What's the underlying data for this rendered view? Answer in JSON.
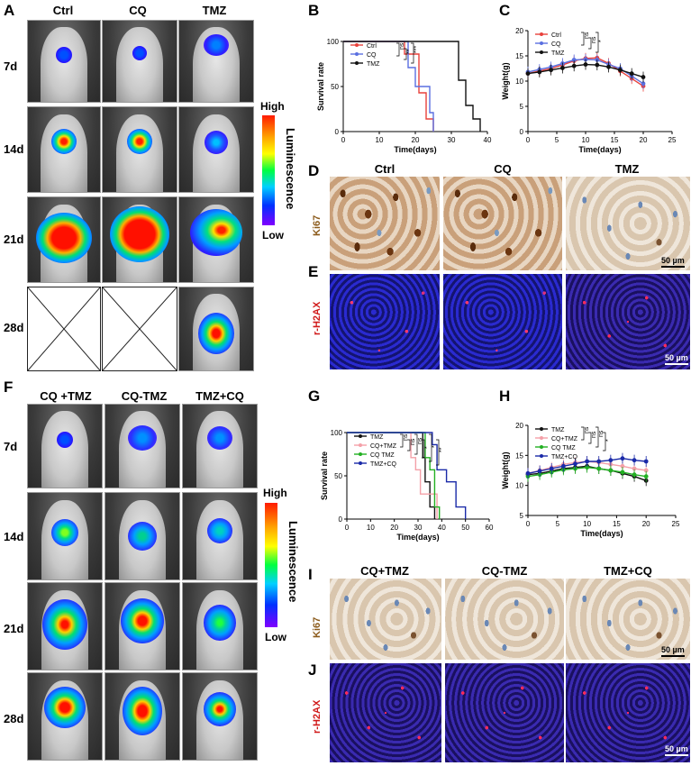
{
  "panels": {
    "A": {
      "label": "A",
      "columns": [
        "Ctrl",
        "CQ",
        "TMZ"
      ],
      "rows": [
        "7d",
        "14d",
        "21d",
        "28d"
      ]
    },
    "F": {
      "label": "F",
      "columns": [
        "CQ +TMZ",
        "CQ-TMZ",
        "TMZ+CQ"
      ],
      "rows": [
        "7d",
        "14d",
        "21d",
        "28d"
      ]
    },
    "B": {
      "label": "B"
    },
    "C": {
      "label": "C"
    },
    "D": {
      "label": "D",
      "columns": [
        "Ctrl",
        "CQ",
        "TMZ"
      ],
      "stain": "Ki67",
      "scale": "50 µm"
    },
    "E": {
      "label": "E",
      "stain": "r-H2AX",
      "scale": "50 µm"
    },
    "G": {
      "label": "G"
    },
    "H": {
      "label": "H"
    },
    "I": {
      "label": "I",
      "columns": [
        "CQ+TMZ",
        "CQ-TMZ",
        "TMZ+CQ"
      ],
      "stain": "Ki67",
      "scale": "50 µm"
    },
    "J": {
      "label": "J",
      "stain": "r-H2AX",
      "scale": "50 µm"
    }
  },
  "colorbar": {
    "high": "High",
    "low": "Low",
    "title": "Luminescence"
  },
  "colors": {
    "red": "#e8413c",
    "blue": "#5a6fe0",
    "black": "#111111",
    "pink": "#f4a0a8",
    "green": "#22b022",
    "navy": "#1a2aa8"
  },
  "chart_data": [
    {
      "id": "B",
      "type": "line",
      "style": "step",
      "xlabel": "Time(days)",
      "ylabel": "Survival rate",
      "xlim": [
        0,
        40
      ],
      "ylim": [
        0,
        100
      ],
      "xticks": [
        0,
        10,
        20,
        30,
        40
      ],
      "yticks": [
        0,
        50,
        100
      ],
      "legend": [
        "Ctrl",
        "CQ",
        "TMZ"
      ],
      "significance": [
        "ns",
        "**",
        "***"
      ],
      "series": [
        {
          "name": "Ctrl",
          "color": "#e8413c",
          "x": [
            0,
            15,
            17,
            21,
            23,
            25
          ],
          "y": [
            100,
            100,
            86,
            43,
            14,
            0
          ]
        },
        {
          "name": "CQ",
          "color": "#5a6fe0",
          "x": [
            0,
            14,
            18,
            20,
            24,
            25
          ],
          "y": [
            100,
            100,
            71,
            50,
            21,
            0
          ]
        },
        {
          "name": "TMZ",
          "color": "#111111",
          "x": [
            0,
            30,
            32,
            34,
            36,
            38
          ],
          "y": [
            100,
            100,
            57,
            29,
            14,
            0
          ]
        }
      ]
    },
    {
      "id": "C",
      "type": "line",
      "xlabel": "Time(days)",
      "ylabel": "Weight(g)",
      "xlim": [
        0,
        25
      ],
      "ylim": [
        0,
        20
      ],
      "xticks": [
        0,
        5,
        10,
        15,
        20,
        25
      ],
      "yticks": [
        0,
        5,
        10,
        15,
        20
      ],
      "legend": [
        "Ctrl",
        "CQ",
        "TMZ"
      ],
      "significance": [
        "ns",
        "ns",
        "*"
      ],
      "series": [
        {
          "name": "Ctrl",
          "color": "#e8413c",
          "x": [
            0,
            2,
            4,
            6,
            8,
            10,
            12,
            14,
            16,
            18,
            20
          ],
          "y": [
            11.5,
            12.0,
            12.5,
            13.2,
            14.0,
            14.5,
            14.6,
            13.5,
            12.0,
            10.5,
            9.0
          ]
        },
        {
          "name": "CQ",
          "color": "#5a6fe0",
          "x": [
            0,
            2,
            4,
            6,
            8,
            10,
            12,
            14,
            16,
            18,
            20
          ],
          "y": [
            11.8,
            12.3,
            12.8,
            13.5,
            14.2,
            14.3,
            14.2,
            13.3,
            12.5,
            11.0,
            9.5
          ]
        },
        {
          "name": "TMZ",
          "color": "#111111",
          "x": [
            0,
            2,
            4,
            6,
            8,
            10,
            12,
            14,
            16,
            18,
            20
          ],
          "y": [
            11.5,
            11.8,
            12.2,
            12.6,
            13.0,
            13.3,
            13.2,
            12.8,
            12.2,
            11.5,
            10.8
          ]
        }
      ]
    },
    {
      "id": "G",
      "type": "line",
      "style": "step",
      "xlabel": "Time(days)",
      "ylabel": "Survival rate",
      "xlim": [
        0,
        60
      ],
      "ylim": [
        0,
        100
      ],
      "xticks": [
        0,
        10,
        20,
        30,
        40,
        50,
        60
      ],
      "yticks": [
        0,
        50,
        100
      ],
      "legend": [
        "TMZ",
        "CQ+TMZ",
        "CQ TMZ",
        "TMZ+CQ"
      ],
      "significance": [
        "ns",
        "ns",
        "ns",
        "*",
        "*",
        "**"
      ],
      "series": [
        {
          "name": "TMZ",
          "color": "#111111",
          "x": [
            0,
            30,
            32,
            33,
            35,
            37
          ],
          "y": [
            100,
            100,
            71,
            43,
            14,
            0
          ]
        },
        {
          "name": "CQ+TMZ",
          "color": "#f4a0a8",
          "x": [
            0,
            25,
            27,
            29,
            31,
            38
          ],
          "y": [
            100,
            100,
            71,
            57,
            29,
            0
          ]
        },
        {
          "name": "CQ TMZ",
          "color": "#22b022",
          "x": [
            0,
            31,
            33,
            35,
            37,
            39
          ],
          "y": [
            100,
            100,
            71,
            57,
            14,
            0
          ]
        },
        {
          "name": "TMZ+CQ",
          "color": "#1a2aa8",
          "x": [
            0,
            34,
            36,
            38,
            42,
            46,
            50
          ],
          "y": [
            100,
            100,
            86,
            57,
            43,
            14,
            0
          ]
        }
      ]
    },
    {
      "id": "H",
      "type": "line",
      "xlabel": "Time(days)",
      "ylabel": "Weight(g)",
      "xlim": [
        0,
        25
      ],
      "ylim": [
        5,
        20
      ],
      "xticks": [
        0,
        5,
        10,
        15,
        20,
        25
      ],
      "yticks": [
        5,
        10,
        15,
        20
      ],
      "legend": [
        "TMZ",
        "CQ+TMZ",
        "CQ TMZ",
        "TMZ+CQ"
      ],
      "significance": [
        "ns",
        "ns",
        "ns",
        "*"
      ],
      "series": [
        {
          "name": "TMZ",
          "color": "#111111",
          "x": [
            0,
            2,
            4,
            6,
            8,
            10,
            12,
            14,
            16,
            18,
            20
          ],
          "y": [
            11.8,
            12.0,
            12.4,
            12.8,
            13.0,
            13.2,
            12.8,
            12.5,
            12.0,
            11.5,
            10.8
          ]
        },
        {
          "name": "CQ+TMZ",
          "color": "#f4a0a8",
          "x": [
            0,
            2,
            4,
            6,
            8,
            10,
            12,
            14,
            16,
            18,
            20
          ],
          "y": [
            12.0,
            12.5,
            13.0,
            13.5,
            13.8,
            14.0,
            13.8,
            13.5,
            13.2,
            12.8,
            12.5
          ]
        },
        {
          "name": "CQ TMZ",
          "color": "#22b022",
          "x": [
            0,
            2,
            4,
            6,
            8,
            10,
            12,
            14,
            16,
            18,
            20
          ],
          "y": [
            11.5,
            11.8,
            12.2,
            12.6,
            12.8,
            13.0,
            12.8,
            12.5,
            12.2,
            11.8,
            11.5
          ]
        },
        {
          "name": "TMZ+CQ",
          "color": "#1a2aa8",
          "x": [
            0,
            2,
            4,
            6,
            8,
            10,
            12,
            14,
            16,
            18,
            20
          ],
          "y": [
            12.0,
            12.4,
            12.8,
            13.2,
            13.6,
            14.0,
            14.0,
            14.2,
            14.5,
            14.2,
            14.0
          ]
        }
      ]
    }
  ]
}
